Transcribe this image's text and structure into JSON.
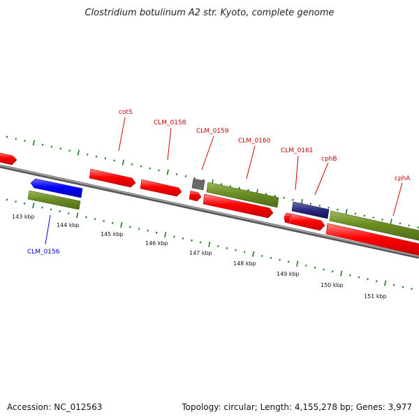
{
  "title": "Clostridium botulinum A2 str. Kyoto, complete genome",
  "footer": {
    "accession": "Accession: NC_012563",
    "summary": "Topology: circular; Length: 4,155,278 bp; Genes: 3,977"
  },
  "kbp_labels": [
    "143 kbp",
    "144 kbp",
    "145 kbp",
    "146 kbp",
    "147 kbp",
    "148 kbp",
    "149 kbp",
    "150 kbp",
    "151 kbp"
  ],
  "gene_labels": {
    "cotS": "cotS",
    "clm_0158": "CLM_0158",
    "clm_0159": "CLM_0159",
    "clm_0160": "CLM_0160",
    "clm_0161": "CLM_0161",
    "cphB": "cphB",
    "cphA": "cphA",
    "clm_0156": "CLM_0156"
  },
  "colors": {
    "cds": "#ff0000",
    "gene": "#6b8e23",
    "highlight": "#0000ff",
    "tick": "#1a7a1a",
    "backbone": "#888888",
    "label_red": "#cc0000",
    "label_blue": "#0000cc"
  }
}
